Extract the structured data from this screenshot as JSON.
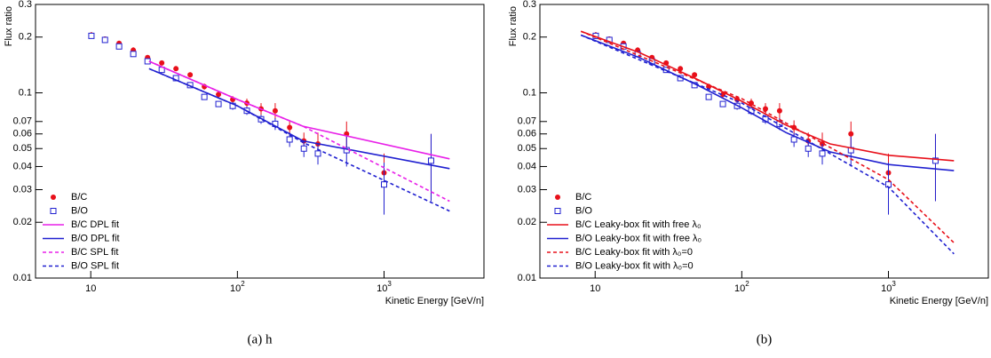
{
  "chart_data": [
    {
      "type": "line",
      "caption": "(a) h",
      "ylabel": "Flux ratio",
      "xlabel": "Kinetic Energy [GeV/n]",
      "log_x": true,
      "log_y": true,
      "xlim": [
        4.2,
        4800
      ],
      "ylim": [
        0.01,
        0.3
      ],
      "xticks": [
        10,
        {
          "value": 100,
          "label": "10",
          "exponent": "2"
        },
        {
          "value": 1000,
          "label": "10",
          "exponent": "3"
        }
      ],
      "yticks": [
        0.01,
        0.02,
        0.03,
        0.04,
        0.05,
        0.06,
        0.07,
        0.1,
        0.2,
        0.3
      ],
      "legend": "lower-left",
      "series": [
        {
          "name": "B/C",
          "color": "#e8101a",
          "marker": "circle",
          "x": [
            10.1,
            12.5,
            15.6,
            19.5,
            24.4,
            30.5,
            38.1,
            47.6,
            59.5,
            74.3,
            92.9,
            116,
            145,
            181,
            227,
            284,
            354,
            555,
            1000,
            2093
          ],
          "values": [
            0.205,
            0.195,
            0.185,
            0.17,
            0.155,
            0.145,
            0.135,
            0.125,
            0.108,
            0.098,
            0.092,
            0.088,
            0.082,
            0.08,
            0.065,
            0.055,
            0.053,
            0.06,
            0.037,
            0.043
          ],
          "errors": [
            0.008,
            0.006,
            0.006,
            0.006,
            0.005,
            0.004,
            0.004,
            0.004,
            0.004,
            0.004,
            0.004,
            0.005,
            0.006,
            0.008,
            0.006,
            0.006,
            0.008,
            0.01,
            0.01,
            0.017
          ]
        },
        {
          "name": "B/O",
          "color": "#2020d0",
          "marker": "square",
          "x": [
            10.1,
            12.5,
            15.6,
            19.5,
            24.4,
            30.5,
            38.1,
            47.6,
            59.5,
            74.3,
            92.9,
            116,
            145,
            181,
            227,
            284,
            354,
            555,
            1000,
            2093
          ],
          "values": [
            0.203,
            0.193,
            0.178,
            0.162,
            0.148,
            0.133,
            0.12,
            0.11,
            0.095,
            0.087,
            0.085,
            0.08,
            0.072,
            0.068,
            0.056,
            0.05,
            0.047,
            0.049,
            0.032,
            0.043
          ],
          "errors": [
            0.006,
            0.005,
            0.005,
            0.005,
            0.004,
            0.004,
            0.004,
            0.004,
            0.003,
            0.003,
            0.004,
            0.004,
            0.004,
            0.005,
            0.005,
            0.005,
            0.006,
            0.009,
            0.01,
            0.017
          ]
        },
        {
          "name": "B/C DPL fit",
          "color": "#e820e8",
          "dash": false,
          "x": [
            25,
            100,
            280,
            2800
          ],
          "values": [
            0.148,
            0.092,
            0.066,
            0.044
          ]
        },
        {
          "name": "B/O DPL fit",
          "color": "#2020d0",
          "dash": false,
          "x": [
            25,
            100,
            280,
            2800
          ],
          "values": [
            0.135,
            0.085,
            0.055,
            0.039
          ]
        },
        {
          "name": "B/C SPL fit",
          "color": "#e820e8",
          "dash": true,
          "x": [
            25,
            100,
            280,
            2800
          ],
          "values": [
            0.148,
            0.092,
            0.066,
            0.026
          ]
        },
        {
          "name": "B/O SPL fit",
          "color": "#2020d0",
          "dash": true,
          "x": [
            25,
            100,
            280,
            2800
          ],
          "values": [
            0.135,
            0.085,
            0.054,
            0.023
          ]
        }
      ]
    },
    {
      "type": "line",
      "caption": "(b)",
      "ylabel": "Flux ratio",
      "xlabel": "Kinetic Energy [GeV/n]",
      "log_x": true,
      "log_y": true,
      "xlim": [
        4.2,
        4800
      ],
      "ylim": [
        0.01,
        0.3
      ],
      "xticks": [
        10,
        {
          "value": 100,
          "label": "10",
          "exponent": "2"
        },
        {
          "value": 1000,
          "label": "10",
          "exponent": "3"
        }
      ],
      "yticks": [
        0.01,
        0.02,
        0.03,
        0.04,
        0.05,
        0.06,
        0.07,
        0.1,
        0.2,
        0.3
      ],
      "legend": "lower-left",
      "series": [
        {
          "name": "B/C",
          "color": "#e8101a",
          "marker": "circle",
          "x": [
            10.1,
            12.5,
            15.6,
            19.5,
            24.4,
            30.5,
            38.1,
            47.6,
            59.5,
            74.3,
            92.9,
            116,
            145,
            181,
            227,
            284,
            354,
            555,
            1000,
            2093
          ],
          "values": [
            0.205,
            0.195,
            0.185,
            0.17,
            0.155,
            0.145,
            0.135,
            0.125,
            0.108,
            0.098,
            0.092,
            0.088,
            0.082,
            0.08,
            0.065,
            0.055,
            0.053,
            0.06,
            0.037,
            0.043
          ],
          "errors": [
            0.008,
            0.006,
            0.006,
            0.006,
            0.005,
            0.004,
            0.004,
            0.004,
            0.004,
            0.004,
            0.004,
            0.005,
            0.006,
            0.008,
            0.006,
            0.006,
            0.008,
            0.01,
            0.01,
            0.017
          ]
        },
        {
          "name": "B/O",
          "color": "#2020d0",
          "marker": "square",
          "x": [
            10.1,
            12.5,
            15.6,
            19.5,
            24.4,
            30.5,
            38.1,
            47.6,
            59.5,
            74.3,
            92.9,
            116,
            145,
            181,
            227,
            284,
            354,
            555,
            1000,
            2093
          ],
          "values": [
            0.203,
            0.193,
            0.178,
            0.162,
            0.148,
            0.133,
            0.12,
            0.11,
            0.095,
            0.087,
            0.085,
            0.08,
            0.072,
            0.068,
            0.056,
            0.05,
            0.047,
            0.049,
            0.032,
            0.043
          ],
          "errors": [
            0.006,
            0.005,
            0.005,
            0.005,
            0.004,
            0.004,
            0.004,
            0.004,
            0.003,
            0.003,
            0.004,
            0.004,
            0.004,
            0.005,
            0.005,
            0.005,
            0.006,
            0.009,
            0.01,
            0.017
          ]
        },
        {
          "name": "B/C Leaky-box fit with free λ₀",
          "color": "#e8101a",
          "dash": false,
          "x": [
            8,
            20,
            50,
            100,
            200,
            400,
            1000,
            2800
          ],
          "values": [
            0.215,
            0.165,
            0.118,
            0.09,
            0.067,
            0.053,
            0.046,
            0.043
          ]
        },
        {
          "name": "B/O Leaky-box fit with free λ₀",
          "color": "#2020d0",
          "dash": false,
          "x": [
            8,
            20,
            50,
            100,
            200,
            400,
            1000,
            2800
          ],
          "values": [
            0.205,
            0.155,
            0.11,
            0.083,
            0.061,
            0.048,
            0.041,
            0.038
          ]
        },
        {
          "name": "B/C Leaky-box fit with λ₀=0",
          "color": "#e8101a",
          "dash": true,
          "x": [
            8,
            100,
            1000,
            2800
          ],
          "values": [
            0.215,
            0.093,
            0.034,
            0.0155
          ]
        },
        {
          "name": "B/O Leaky-box fit with λ₀=0",
          "color": "#2020d0",
          "dash": true,
          "x": [
            8,
            100,
            1000,
            2800
          ],
          "values": [
            0.205,
            0.088,
            0.031,
            0.0135
          ]
        }
      ]
    }
  ]
}
